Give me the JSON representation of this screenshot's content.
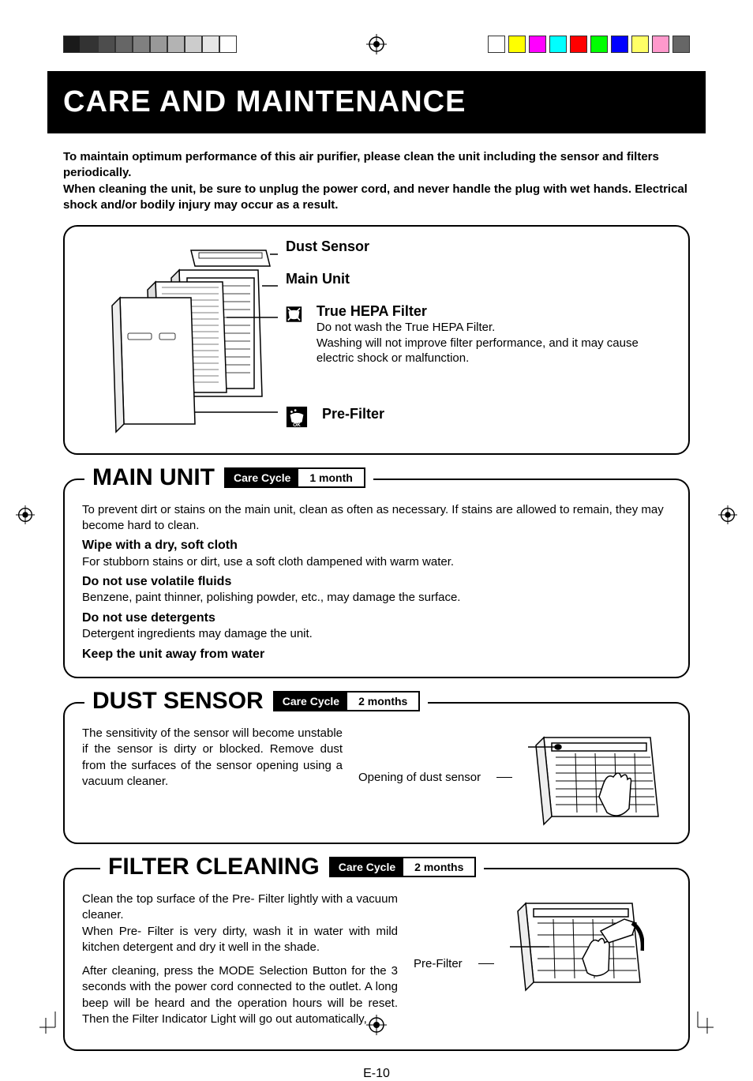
{
  "crop_colors_left": [
    "#1a1a1a",
    "#333333",
    "#4d4d4d",
    "#666666",
    "#808080",
    "#999999",
    "#b3b3b3",
    "#cccccc",
    "#e6e6e6",
    "#ffffff"
  ],
  "crop_colors_right": [
    "#ffffff",
    "#ffff00",
    "#ff00ff",
    "#00ffff",
    "#ff0000",
    "#00ff00",
    "#0000ff",
    "#ffff66",
    "#ff99cc",
    "#666666"
  ],
  "title": "CARE AND MAINTENANCE",
  "intro": "To maintain optimum performance of this air purifier, please clean the unit including the sensor and filters periodically.\nWhen cleaning the unit, be sure to unplug the power cord, and never handle the plug with wet hands. Electrical shock and/or bodily injury may occur as a result.",
  "overview": {
    "dust_sensor": "Dust Sensor",
    "main_unit": "Main Unit",
    "hepa_title": "True HEPA Filter",
    "hepa_body": "Do not  wash the True HEPA Filter.\nWashing will not improve filter performance, and it may cause electric shock or malfunction.",
    "pre_filter": "Pre-Filter"
  },
  "main_unit": {
    "title": "MAIN UNIT",
    "cc_label": "Care Cycle",
    "cc_value": "1 month",
    "body_intro": "To prevent dirt or stains on the main unit, clean as often as necessary. If stains are allowed to remain, they may become hard to clean.",
    "b1": "Wipe with a dry, soft cloth",
    "t1": "For stubborn stains or dirt, use a soft cloth dampened with warm water.",
    "b2": "Do not use volatile fluids",
    "t2": "Benzene, paint thinner, polishing powder, etc., may damage the surface.",
    "b3": "Do not use detergents",
    "t3": "Detergent ingredients may damage the unit.",
    "b4": "Keep the unit away from water"
  },
  "dust_sensor": {
    "title": "DUST SENSOR",
    "cc_label": "Care Cycle",
    "cc_value": "2 months",
    "text": "The sensitivity of the sensor will become unstable if the sensor is dirty or blocked. Remove dust from the surfaces of the sensor opening using a vacuum cleaner.",
    "callout": "Opening of dust sensor"
  },
  "filter": {
    "title": "FILTER CLEANING",
    "cc_label": "Care Cycle",
    "cc_value": "2 months",
    "p1": "Clean the top surface of the Pre- Filter lightly with a vacuum cleaner.\nWhen Pre- Filter is very dirty, wash it in water with mild kitchen detergent and dry it well in the shade.",
    "p2": "After cleaning, press the MODE Selection Button for the 3 seconds with the power cord connected to the outlet. A long beep will be heard and the operation hours will be reset. Then the Filter Indicator Light will go out automatically,",
    "callout": "Pre-Filter"
  },
  "page_num": "E-10",
  "colors": {
    "title_bg": "#000000",
    "title_fg": "#ffffff",
    "text": "#000000",
    "border": "#000000"
  }
}
